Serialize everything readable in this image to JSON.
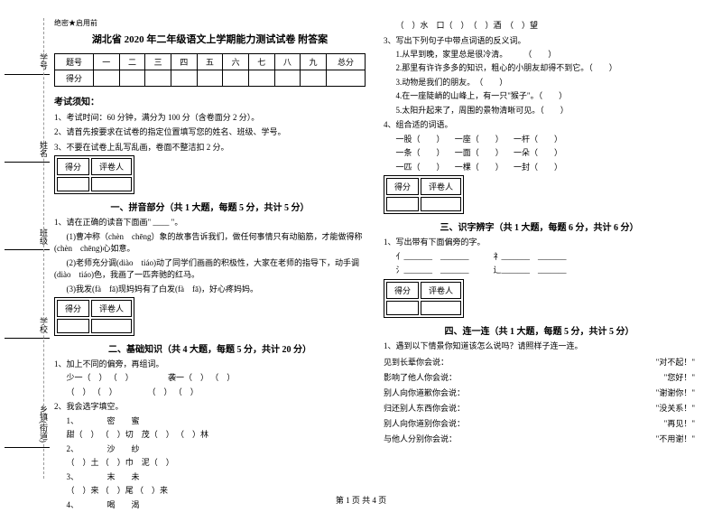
{
  "side": {
    "l1": "乡镇(街道)",
    "l2": "学校",
    "l3": "班级",
    "l4": "姓名",
    "l5": "学号",
    "d1": "密",
    "d2": "封",
    "d3": "线",
    "d4": "内",
    "d5": "不",
    "d6": "准",
    "d7": "答",
    "d8": "题"
  },
  "meta": "绝密★启用前",
  "title": "湖北省 2020 年二年级语文上学期能力测试试卷 附答案",
  "score": {
    "h": [
      "题号",
      "一",
      "二",
      "三",
      "四",
      "五",
      "六",
      "七",
      "八",
      "九",
      "总分"
    ],
    "r": "得分"
  },
  "notice": {
    "t": "考试须知：",
    "i1": "1、考试时间：60 分钟，满分为 100 分（含卷面分 2 分）。",
    "i2": "2、请首先按要求在试卷的指定位置填写您的姓名、班级、学号。",
    "i3": "3、不要在试卷上乱写乱画，卷面不整洁扣 2 分。"
  },
  "grade": {
    "c1": "得分",
    "c2": "评卷人"
  },
  "s1": {
    "title": "一、拼音部分（共 1 大题，每题 5 分，共计 5 分）",
    "q": "1、请在正确的读音下面画\" ____ \"。",
    "t1": "(1)曹冲称（chèn　chēng）象的故事告诉我们，做任何事情只有动脑筋，才能做得称(chèn　chēng)心如意。",
    "t2": "(2)老师充分调(diào　tiáo)动了同学们画画的积极性，大家在老师的指导下，动手调(diào　tiáo)色，我画了一匹奔驰的红马。",
    "t3": "(3)我发(fà　fā)现妈妈有了白发(fà　fā)，好心疼妈妈。"
  },
  "s2": {
    "title": "二、基础知识（共 4 大题，每题 5 分，共计 20 分）",
    "q1": "1、加上不同的偏旁，再组词。",
    "r1": "少一（　） （　） 　　　　袭一（　） （　）",
    "r2": "（　） （　） 　　　　（　） （　）",
    "q2": "2、我会选字填空。",
    "w1": "1、　　　　密　　蜜",
    "w1t": "甜（　） （　）切　茂（　） （　）林",
    "w2": "2、　　　　沙　　纱",
    "w2t": "（　）土 （　）巾　泥（　）",
    "w3": "3、　　　　末　　未",
    "w3t": "（　）来 （　）尾 （　）来",
    "w4": "4、　　　　喝　　渴"
  },
  "r": {
    "q3a": "（　）水　口（　）　（　）酒　（　）望",
    "q3": "3、写出下列句子中带点词语的反义词。",
    "i1": "1.从早到晚，家里总是很冷清。　　　（　　）",
    "i2": "2.那里有许许多多的知识，粗心的小朋友却得不到它。（　　）",
    "i3": "3.动物是我们的朋友。　（　　）",
    "i4": "4.在一座陡峭的山峰上，有一只\"猴子\"。（　　）",
    "i5": "5.太阳升起来了，周围的景物清晰可见。（　　）",
    "q4": "4、组合适的词语。",
    "r4a": "一股（　　） 　一座（　　） 　一杆（　　）",
    "r4b": "一条（　　） 　一面（　　） 　一朵（　　）",
    "r4c": "一匹（　　） 　一棵（　　） 　一封（　　）"
  },
  "s3": {
    "title": "三、识字辨字（共 1 大题，每题 6 分，共计 6 分）",
    "q": "1、写出带有下面偏旁的字。",
    "l1": "亻_______　_______　　　礻_______　_______",
    "l2": "氵_______　_______　　　辶_______　_______"
  },
  "s4": {
    "title": "四、连一连（共 1 大题，每题 5 分，共计 5 分）",
    "q": "1、遇到以下情景你知道该怎么说吗？请照样子连一连。",
    "p1a": "见到长辈你会说：",
    "p1b": "\"对不起！\"",
    "p2a": "影响了他人你会说：",
    "p2b": "\"您好！\"",
    "p3a": "别人向你道歉你会说：",
    "p3b": "\"谢谢你！\"",
    "p4a": "归还别人东西你会说：",
    "p4b": "\"没关系！\"",
    "p5a": "别人向你道别你会说：",
    "p5b": "\"再见！\"",
    "p6a": "与他人分别你会说：",
    "p6b": "\"不用谢！\""
  },
  "footer": "第 1 页 共 4 页"
}
